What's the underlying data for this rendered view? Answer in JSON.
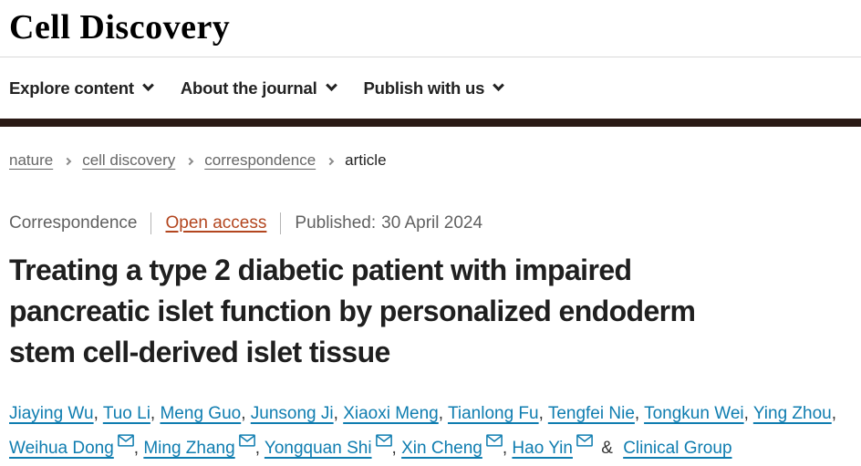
{
  "header": {
    "logo": "Cell Discovery",
    "nav": [
      {
        "label": "Explore content"
      },
      {
        "label": "About the journal"
      },
      {
        "label": "Publish with us"
      }
    ]
  },
  "breadcrumb": {
    "links": [
      "nature",
      "cell discovery",
      "correspondence"
    ],
    "current": "article"
  },
  "article": {
    "type_label": "Correspondence",
    "access_label": "Open access",
    "published_label": "Published:",
    "published_date": "30 April 2024",
    "title_lines": [
      "Treating a type 2 diabetic patient with impaired",
      "pancreatic islet function by personalized endoderm",
      "stem cell-derived islet tissue"
    ],
    "authors": [
      {
        "name": "Jiaying Wu",
        "email": false
      },
      {
        "name": "Tuo Li",
        "email": false
      },
      {
        "name": "Meng Guo",
        "email": false
      },
      {
        "name": "Junsong Ji",
        "email": false
      },
      {
        "name": "Xiaoxi Meng",
        "email": false
      },
      {
        "name": "Tianlong Fu",
        "email": false
      },
      {
        "name": "Tengfei Nie",
        "email": false
      },
      {
        "name": "Tongkun Wei",
        "email": false
      },
      {
        "name": "Ying Zhou",
        "email": false
      },
      {
        "name": "Weihua Dong",
        "email": true
      },
      {
        "name": "Ming Zhang",
        "email": true
      },
      {
        "name": "Yongquan Shi",
        "email": true
      },
      {
        "name": "Xin Cheng",
        "email": true
      },
      {
        "name": "Hao Yin",
        "email": true
      }
    ],
    "conjunction": "&",
    "group_author": "Clinical Group"
  },
  "colors": {
    "link_blue": "#0f7db0",
    "open_access": "#b3461f",
    "brand_band": "#2a1a15"
  }
}
